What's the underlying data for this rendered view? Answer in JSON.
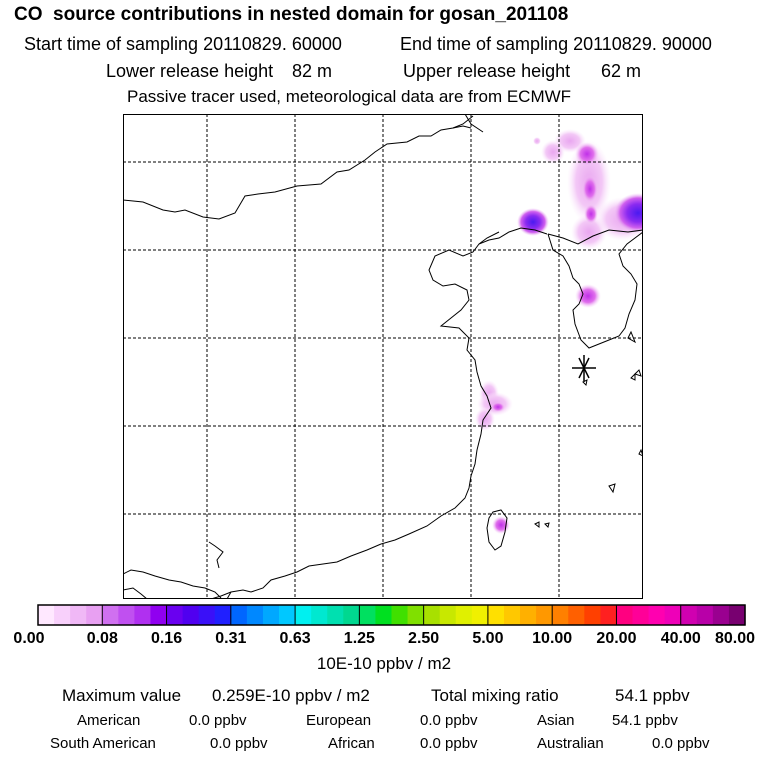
{
  "header": {
    "title": "CO  source contributions in nested domain for gosan_201108",
    "start_time_label": "Start time of sampling 20110829. 60000",
    "end_time_label": "End time of sampling 20110829. 90000",
    "lower_release_label": "Lower release height",
    "lower_release_value": "82 m",
    "upper_release_label": "Upper release height",
    "upper_release_value": "62 m",
    "note": "Passive tracer used, meteorological data are from ECMWF"
  },
  "map": {
    "receptor_marker": "asterisk-icon",
    "colors": {
      "grid": "#000000",
      "coast": "#000000",
      "plume_light": "#f2c4f5",
      "plume_mid": "#e06ee8",
      "plume_strong": "#c030e8",
      "plume_peak": "#4a1af0"
    }
  },
  "legend": {
    "colors": [
      "#ffe8ff",
      "#f8d0fb",
      "#f0b8f6",
      "#e8a0f2",
      "#d070f0",
      "#c050f0",
      "#b030f0",
      "#9000f0",
      "#6a00f0",
      "#5000f0",
      "#3a10f8",
      "#2020ff",
      "#0066ff",
      "#0088ff",
      "#00a8ff",
      "#00c8ff",
      "#00f0f0",
      "#00e8d0",
      "#00e0b0",
      "#00d890",
      "#00e060",
      "#00e020",
      "#40e000",
      "#80e000",
      "#a8e000",
      "#c8e800",
      "#e0f000",
      "#f0f000",
      "#ffe000",
      "#ffc800",
      "#ffb000",
      "#ff9800",
      "#ff8000",
      "#ff6000",
      "#ff4000",
      "#ff2020",
      "#ff0080",
      "#ff0098",
      "#ff00b0",
      "#ee00b8",
      "#d000b0",
      "#b800a8",
      "#9a0090",
      "#780070"
    ],
    "ticks": [
      "0.00",
      "0.08",
      "0.16",
      "0.31",
      "0.63",
      "1.25",
      "2.50",
      "5.00",
      "10.00",
      "20.00",
      "40.00",
      "80.00"
    ],
    "unit": "10E-10 ppbv / m2"
  },
  "stats": {
    "max_label": "Maximum value",
    "max_value": "0.259E-10 ppbv / m2",
    "total_label": "Total mixing ratio",
    "total_value": "54.1 ppbv",
    "regions": [
      {
        "name": "American",
        "value": "0.0 ppbv"
      },
      {
        "name": "European",
        "value": "0.0 ppbv"
      },
      {
        "name": "Asian",
        "value": "54.1 ppbv"
      },
      {
        "name": "South American",
        "value": "0.0 ppbv"
      },
      {
        "name": "African",
        "value": "0.0 ppbv"
      },
      {
        "name": "Australian",
        "value": "0.0 ppbv"
      }
    ]
  }
}
